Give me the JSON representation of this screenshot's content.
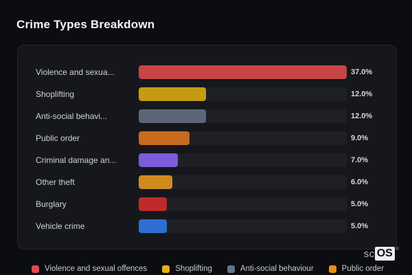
{
  "page": {
    "title": "Crime Types Breakdown",
    "background_color": "#0c0d11",
    "card_color": "#16171c",
    "track_color": "#1f2026"
  },
  "watermark": {
    "prefix": "sc",
    "suffix": "OS",
    "registered": "®"
  },
  "chart": {
    "max_value": 37.0,
    "rows": [
      {
        "label": "Violence and sexua...",
        "value": 37.0,
        "value_label": "37.0%",
        "color": "#c84545"
      },
      {
        "label": "Shoplifting",
        "value": 12.0,
        "value_label": "12.0%",
        "color": "#c49b11"
      },
      {
        "label": "Anti-social behavi...",
        "value": 12.0,
        "value_label": "12.0%",
        "color": "#5c6678"
      },
      {
        "label": "Public order",
        "value": 9.0,
        "value_label": "9.0%",
        "color": "#ca6a1e"
      },
      {
        "label": "Criminal damage an...",
        "value": 7.0,
        "value_label": "7.0%",
        "color": "#7d5cd9"
      },
      {
        "label": "Other theft",
        "value": 6.0,
        "value_label": "6.0%",
        "color": "#cf8b1e"
      },
      {
        "label": "Burglary",
        "value": 5.0,
        "value_label": "5.0%",
        "color": "#bf2a2a"
      },
      {
        "label": "Vehicle crime",
        "value": 5.0,
        "value_label": "5.0%",
        "color": "#2f6fd4"
      }
    ]
  },
  "legend": {
    "items": [
      {
        "label": "Violence and sexual offences",
        "color": "#e5484d"
      },
      {
        "label": "Shoplifting",
        "color": "#e3b112"
      },
      {
        "label": "Anti-social behaviour",
        "color": "#64748b"
      },
      {
        "label": "Public order",
        "color": "#ee8c13"
      }
    ]
  },
  "chart_data": {
    "type": "bar",
    "orientation": "horizontal",
    "title": "Crime Types Breakdown",
    "categories": [
      "Violence and sexua...",
      "Shoplifting",
      "Anti-social behavi...",
      "Public order",
      "Criminal damage an...",
      "Other theft",
      "Burglary",
      "Vehicle crime"
    ],
    "values": [
      37.0,
      12.0,
      12.0,
      9.0,
      7.0,
      6.0,
      5.0,
      5.0
    ],
    "value_format": "percent",
    "xlim": [
      0,
      37.0
    ],
    "xlabel": "",
    "ylabel": "",
    "grid": false,
    "legend_position": "bottom",
    "legend_entries": [
      "Violence and sexual offences",
      "Shoplifting",
      "Anti-social behaviour",
      "Public order"
    ],
    "bar_colors": [
      "#c84545",
      "#c49b11",
      "#5c6678",
      "#ca6a1e",
      "#7d5cd9",
      "#cf8b1e",
      "#bf2a2a",
      "#2f6fd4"
    ]
  }
}
